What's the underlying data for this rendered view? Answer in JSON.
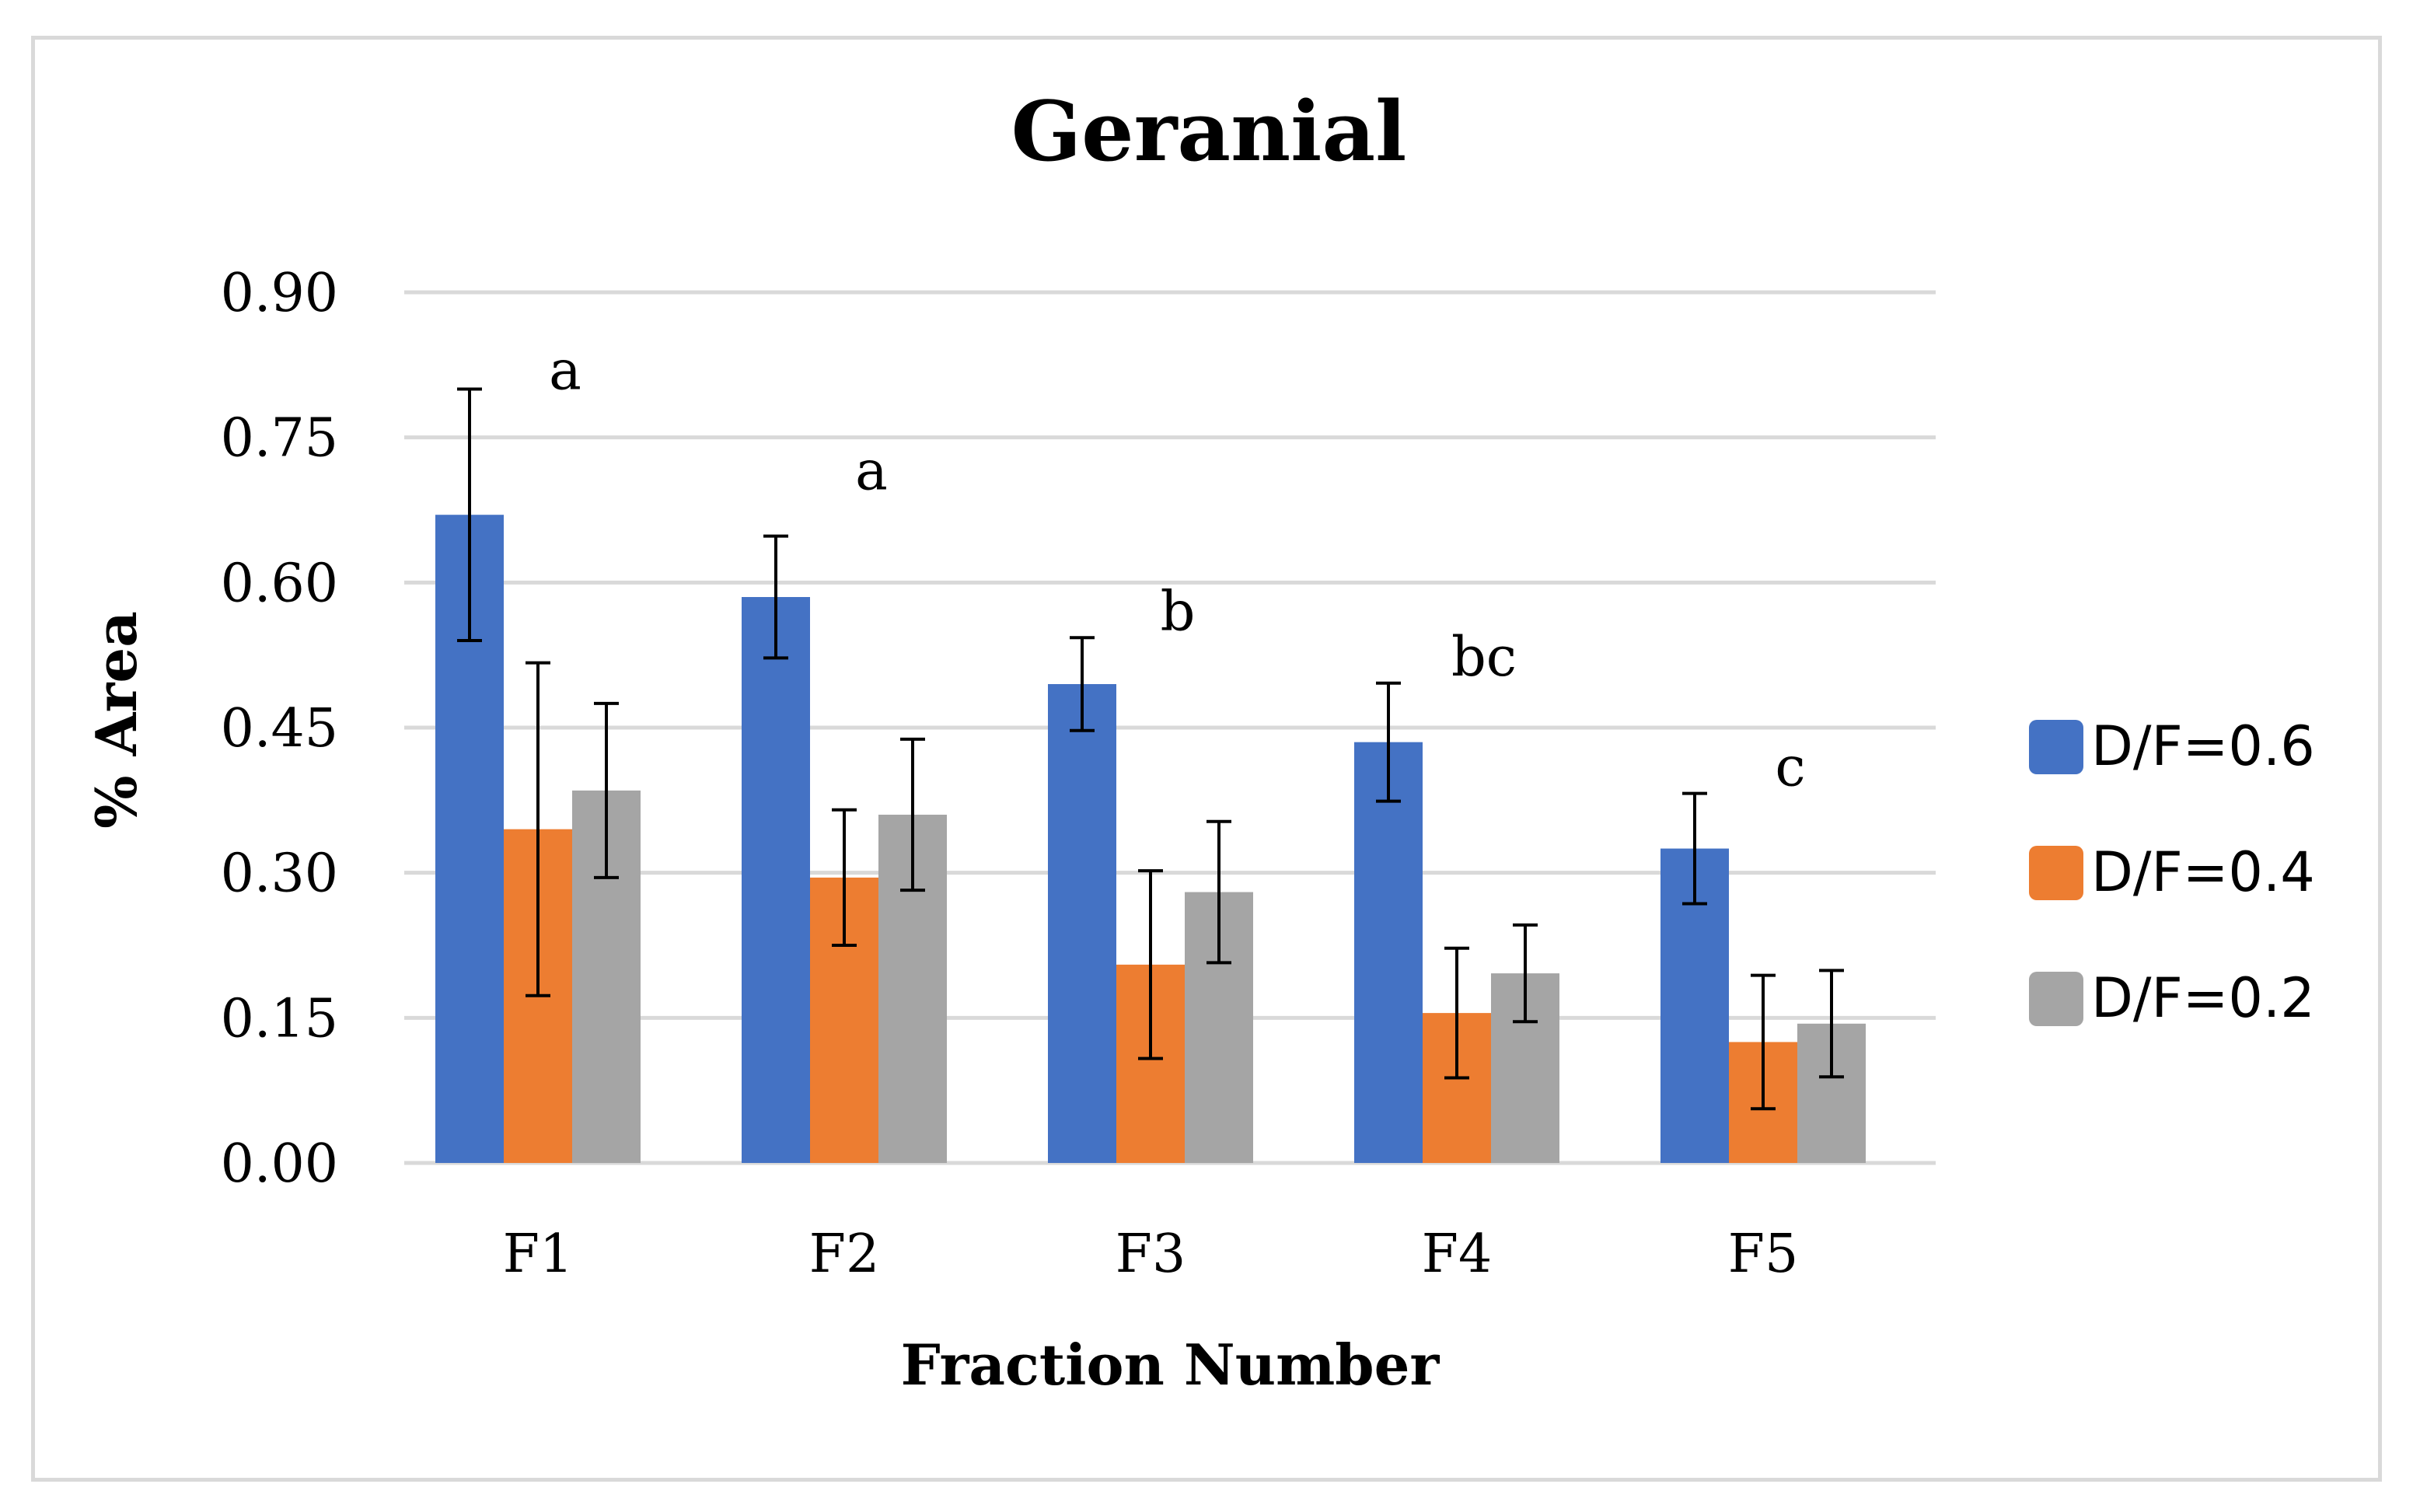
{
  "chart_data": {
    "type": "bar",
    "title": "Geranial",
    "xlabel": "Fraction Number",
    "ylabel": "% Area",
    "categories": [
      "F1",
      "F2",
      "F3",
      "F4",
      "F5"
    ],
    "ylim": [
      0,
      0.9
    ],
    "yticks": [
      "0.00",
      "0.15",
      "0.30",
      "0.45",
      "0.60",
      "0.75",
      "0.90"
    ],
    "grid": true,
    "legend_position": "right",
    "series": [
      {
        "name": "D/F=0.6",
        "color": "#4472c4",
        "values": [
          0.67,
          0.585,
          0.495,
          0.435,
          0.325
        ],
        "errors": [
          0.13,
          0.063,
          0.048,
          0.061,
          0.057
        ]
      },
      {
        "name": "D/F=0.4",
        "color": "#ed7d31",
        "values": [
          0.345,
          0.295,
          0.205,
          0.155,
          0.125
        ],
        "errors": [
          0.172,
          0.07,
          0.097,
          0.067,
          0.069
        ]
      },
      {
        "name": "D/F=0.2",
        "color": "#a5a5a5",
        "values": [
          0.385,
          0.36,
          0.28,
          0.196,
          0.144
        ],
        "errors": [
          0.09,
          0.078,
          0.073,
          0.05,
          0.055
        ]
      }
    ],
    "annotations": [
      "a",
      "a",
      "b",
      "bc",
      "c"
    ]
  }
}
